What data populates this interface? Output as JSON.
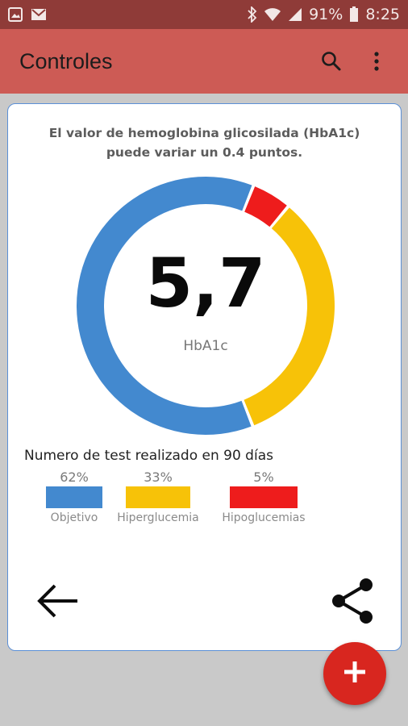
{
  "status_bar": {
    "left_icons": [
      "image-icon",
      "mail-icon"
    ],
    "right_icons": [
      "bluetooth-icon",
      "wifi-icon",
      "signal-icon",
      "battery-icon"
    ],
    "battery": "91%",
    "time": "8:25"
  },
  "app_bar": {
    "title": "Controles",
    "actions": [
      "search-icon",
      "more-vert-icon"
    ],
    "color": "#cd5b55"
  },
  "dialog": {
    "title_line1": "El valor de hemoglobina glicosilada (HbA1c)",
    "title_line2": "puede variar un 0.4 puntos.",
    "value": "5,7",
    "value_caption": "HbA1c",
    "tests_label": "Numero de test realizado en 90 días",
    "actions": [
      "arrow-back-icon",
      "share-icon"
    ]
  },
  "chart_data": {
    "type": "pie",
    "categories": [
      "Objetivo",
      "Hiperglucemia",
      "Hipoglucemias"
    ],
    "values": [
      62,
      33,
      5
    ],
    "labels": [
      "62%",
      "33%",
      "5%"
    ],
    "colors": [
      "#4389cf",
      "#f7c208",
      "#ee1c1c"
    ],
    "legend": "bottom"
  },
  "fab": {
    "icon": "add-icon",
    "color": "#d8261f"
  }
}
